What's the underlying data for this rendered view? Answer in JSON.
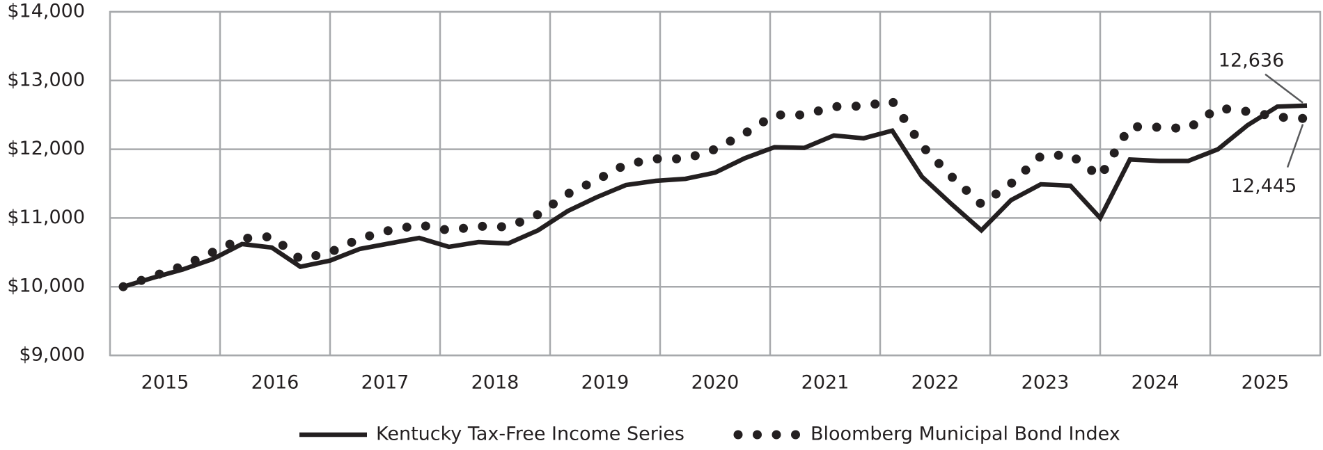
{
  "chart_data": {
    "type": "line",
    "xlim": [
      2015,
      2026
    ],
    "xticks": [
      {
        "value": 2015.5,
        "label": "2015"
      },
      {
        "value": 2016.5,
        "label": "2016"
      },
      {
        "value": 2017.5,
        "label": "2017"
      },
      {
        "value": 2018.5,
        "label": "2018"
      },
      {
        "value": 2019.5,
        "label": "2019"
      },
      {
        "value": 2020.5,
        "label": "2020"
      },
      {
        "value": 2021.5,
        "label": "2021"
      },
      {
        "value": 2022.5,
        "label": "2022"
      },
      {
        "value": 2023.5,
        "label": "2023"
      },
      {
        "value": 2024.5,
        "label": "2024"
      },
      {
        "value": 2025.5,
        "label": "2025"
      }
    ],
    "xgrid": [
      2016,
      2017,
      2018,
      2019,
      2020,
      2021,
      2022,
      2023,
      2024,
      2025
    ],
    "ylim": [
      9000,
      14000
    ],
    "yticks": [
      {
        "value": 9000,
        "label": "$9,000"
      },
      {
        "value": 10000,
        "label": "$10,000"
      },
      {
        "value": 11000,
        "label": "$11,000"
      },
      {
        "value": 12000,
        "label": "$12,000"
      },
      {
        "value": 13000,
        "label": "$13,000"
      },
      {
        "value": 14000,
        "label": "$14,000"
      }
    ],
    "grid": true,
    "x": [
      2015.12,
      2015.39,
      2015.66,
      2015.93,
      2016.2,
      2016.47,
      2016.73,
      2017.0,
      2017.27,
      2017.54,
      2017.81,
      2018.08,
      2018.35,
      2018.62,
      2018.89,
      2019.16,
      2019.42,
      2019.69,
      2019.96,
      2020.23,
      2020.5,
      2020.77,
      2021.04,
      2021.31,
      2021.58,
      2021.85,
      2022.11,
      2022.38,
      2022.65,
      2022.92,
      2023.19,
      2023.46,
      2023.73,
      2024.0,
      2024.27,
      2024.54,
      2024.8,
      2025.07,
      2025.34,
      2025.61,
      2025.88
    ],
    "series": [
      {
        "name": "Kentucky Tax-Free Income Series",
        "color": "#231f20",
        "style": "solid",
        "values": [
          10000,
          10130,
          10250,
          10400,
          10620,
          10570,
          10290,
          10380,
          10550,
          10630,
          10710,
          10580,
          10650,
          10630,
          10820,
          11100,
          11300,
          11480,
          11540,
          11570,
          11660,
          11870,
          12030,
          12020,
          12200,
          12160,
          12270,
          11600,
          11200,
          10820,
          11260,
          11490,
          11470,
          11000,
          11850,
          11830,
          11830,
          12000,
          12350,
          12620,
          12636
        ],
        "value_labels": [
          null,
          null,
          null,
          null,
          null,
          null,
          null,
          null,
          null,
          null,
          null,
          null,
          null,
          null,
          null,
          null,
          null,
          null,
          null,
          null,
          null,
          null,
          null,
          null,
          null,
          null,
          null,
          null,
          null,
          null,
          null,
          null,
          null,
          null,
          null,
          null,
          null,
          null,
          null,
          null,
          "12,636"
        ]
      },
      {
        "name": "Bloomberg Municipal Bond Index",
        "color": "#231f20",
        "style": "dotted",
        "values": [
          10000,
          10150,
          10300,
          10500,
          10700,
          10730,
          10400,
          10500,
          10700,
          10820,
          10900,
          10820,
          10880,
          10870,
          11050,
          11350,
          11550,
          11780,
          11860,
          11860,
          12000,
          12230,
          12500,
          12500,
          12620,
          12630,
          12700,
          12050,
          11600,
          11200,
          11500,
          11900,
          11920,
          11600,
          12330,
          12320,
          12300,
          12600,
          12550,
          12470,
          12445
        ],
        "value_labels": [
          null,
          null,
          null,
          null,
          null,
          null,
          null,
          null,
          null,
          null,
          null,
          null,
          null,
          null,
          null,
          null,
          null,
          null,
          null,
          null,
          null,
          null,
          null,
          null,
          null,
          null,
          null,
          null,
          null,
          null,
          null,
          null,
          null,
          null,
          null,
          null,
          null,
          null,
          null,
          null,
          "12,445"
        ]
      }
    ]
  }
}
